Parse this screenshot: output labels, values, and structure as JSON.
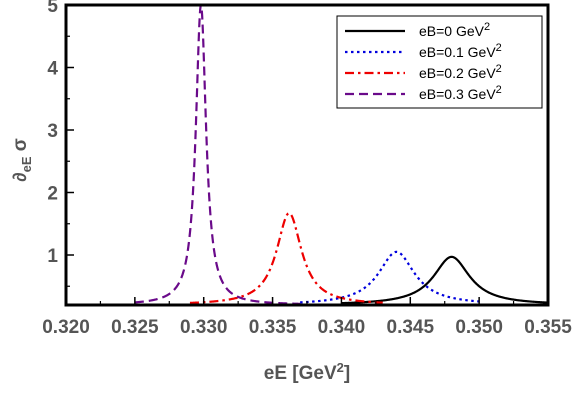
{
  "chart_data": {
    "type": "line",
    "xlabel": {
      "base": "eE [GeV",
      "sup": "2",
      "tail": "]"
    },
    "ylabel": {
      "base": "∂",
      "sub": "eE",
      "tail": " σ"
    },
    "xlim": [
      0.32,
      0.355
    ],
    "ylim": [
      0.2,
      5
    ],
    "xticks": [
      "0.320",
      "0.325",
      "0.330",
      "0.335",
      "0.340",
      "0.345",
      "0.350",
      "0.355"
    ],
    "yticks": [
      "1",
      "2",
      "3",
      "4",
      "5"
    ],
    "legend_position": "top-right",
    "series": [
      {
        "name": "eB=0 GeV",
        "sup": "2",
        "color": "#000000",
        "dash": "solid",
        "peak_x": 0.348,
        "peak_y": 0.97,
        "x_range": [
          0.34,
          0.355
        ]
      },
      {
        "name": "eB=0.1 GeV",
        "sup": "2",
        "color": "#0000dd",
        "dash": "dotted",
        "peak_x": 0.344,
        "peak_y": 1.05,
        "x_range": [
          0.337,
          0.35
        ]
      },
      {
        "name": "eB=0.2 GeV",
        "sup": "2",
        "color": "#ee0000",
        "dash": "dashdot",
        "peak_x": 0.3362,
        "peak_y": 1.67,
        "x_range": [
          0.329,
          0.343
        ]
      },
      {
        "name": "eB=0.3 GeV",
        "sup": "2",
        "color": "#6a0a8a",
        "dash": "dashed",
        "peak_x": 0.3298,
        "peak_y": 5.0,
        "x_range": [
          0.325,
          0.337
        ]
      }
    ]
  }
}
